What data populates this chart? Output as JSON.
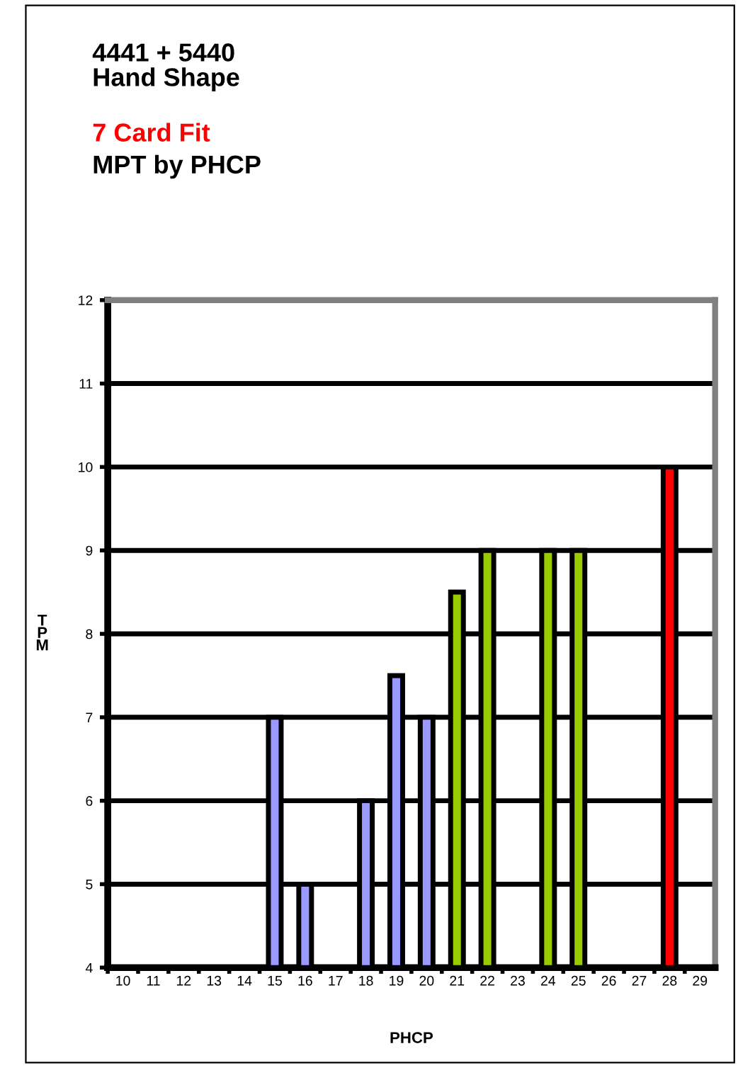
{
  "chart_data": {
    "type": "bar",
    "title": "4441 + 5440\nHand Shape",
    "subtitle": "7 Card Fit",
    "annotations": [
      "MPT by PHCP"
    ],
    "xlabel": "PHCP",
    "ylabel": "TPM",
    "categories": [
      "10",
      "11",
      "12",
      "13",
      "14",
      "15",
      "16",
      "17",
      "18",
      "19",
      "20",
      "21",
      "22",
      "23",
      "24",
      "25",
      "26",
      "27",
      "28",
      "29"
    ],
    "values": [
      null,
      null,
      null,
      null,
      null,
      7,
      5,
      null,
      6,
      7.5,
      7,
      8.5,
      9,
      null,
      9,
      9,
      null,
      null,
      10,
      null
    ],
    "colors": [
      "#9999ff",
      "#9999ff",
      "#9999ff",
      "#9999ff",
      "#9999ff",
      "#9999ff",
      "#9999ff",
      "#9999ff",
      "#9999ff",
      "#9999ff",
      "#9999ff",
      "#99cc00",
      "#99cc00",
      "#99cc00",
      "#99cc00",
      "#99cc00",
      "#9999ff",
      "#9999ff",
      "#ff0000",
      "#9999ff"
    ],
    "ylim": [
      4,
      12
    ],
    "yticks": [
      4,
      5,
      6,
      7,
      8,
      9,
      10,
      11,
      12
    ],
    "grid": "y",
    "legend": false
  }
}
